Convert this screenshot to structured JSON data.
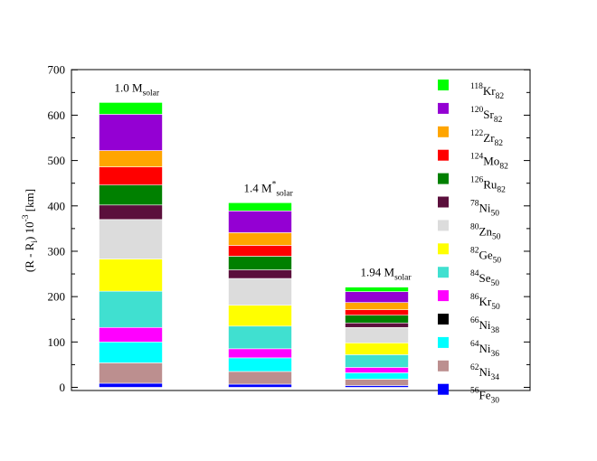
{
  "chart_data": {
    "type": "bar",
    "stacked": true,
    "categories": [
      "1.0 M_solar",
      "1.4 M_solar",
      "1.94 M_solar"
    ],
    "bar_titles": [
      {
        "main": "1.0 M",
        "sup": "",
        "sub": "solar"
      },
      {
        "main": "1.4 M",
        "sup": "*",
        "sub": "solar"
      },
      {
        "main": "1.94 M",
        "sup": "",
        "sub": "solar"
      }
    ],
    "ylabel": {
      "main": "(R - R",
      "sub1": "i",
      "mid": ") 10",
      "sup": "-3",
      "tail": " [km]"
    },
    "ylim": [
      0,
      700
    ],
    "yticks": [
      0,
      100,
      200,
      300,
      400,
      500,
      600,
      700
    ],
    "grid": false,
    "legend_position": "right",
    "series": [
      {
        "mass": "56",
        "el": "Fe",
        "n": "30",
        "color": "#0000ff",
        "values": [
          9,
          7,
          4
        ]
      },
      {
        "mass": "62",
        "el": "Ni",
        "n": "34",
        "color": "#bc8f8f",
        "values": [
          45,
          28,
          14
        ]
      },
      {
        "mass": "64",
        "el": "Ni",
        "n": "36",
        "color": "#00ffff",
        "values": [
          46,
          30,
          14
        ]
      },
      {
        "mass": "66",
        "el": "Ni",
        "n": "38",
        "color": "#000000",
        "values": [
          0,
          0,
          0
        ]
      },
      {
        "mass": "86",
        "el": "Kr",
        "n": "50",
        "color": "#ff00ff",
        "values": [
          32,
          20,
          12
        ]
      },
      {
        "mass": "84",
        "el": "Se",
        "n": "50",
        "color": "#40e0d0",
        "values": [
          80,
          50,
          28
        ]
      },
      {
        "mass": "82",
        "el": "Ge",
        "n": "50",
        "color": "#ffff00",
        "values": [
          71,
          46,
          26
        ]
      },
      {
        "mass": "80",
        "el": "Zn",
        "n": "50",
        "color": "#dcdcdc",
        "values": [
          87,
          59,
          34
        ]
      },
      {
        "mass": "78",
        "el": "Ni",
        "n": "50",
        "color": "#5b0f3c",
        "values": [
          32,
          19,
          10
        ]
      },
      {
        "mass": "126",
        "el": "Ru",
        "n": "82",
        "color": "#008000",
        "values": [
          44,
          30,
          17
        ]
      },
      {
        "mass": "124",
        "el": "Mo",
        "n": "82",
        "color": "#ff0000",
        "values": [
          40,
          24,
          12
        ]
      },
      {
        "mass": "122",
        "el": "Zr",
        "n": "82",
        "color": "#ffa500",
        "values": [
          36,
          28,
          16
        ]
      },
      {
        "mass": "120",
        "el": "Sr",
        "n": "82",
        "color": "#9400d3",
        "values": [
          80,
          48,
          24
        ]
      },
      {
        "mass": "118",
        "el": "Kr",
        "n": "82",
        "color": "#00ff00",
        "values": [
          26,
          18,
          10
        ]
      }
    ]
  }
}
